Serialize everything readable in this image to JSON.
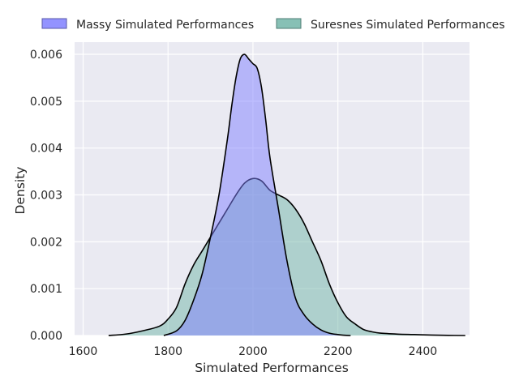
{
  "chart_data": {
    "type": "area",
    "title": "",
    "xlabel": "Simulated Performances",
    "ylabel": "Density",
    "xlim": [
      1580,
      2510
    ],
    "ylim": [
      0,
      0.00626
    ],
    "x_ticks": [
      1600,
      1800,
      2000,
      2200,
      2400
    ],
    "x_tick_labels": [
      "1600",
      "1800",
      "2000",
      "2200",
      "2400"
    ],
    "y_ticks": [
      0,
      0.001,
      0.002,
      0.003,
      0.004,
      0.005,
      0.006
    ],
    "y_tick_labels": [
      "0.000",
      "0.001",
      "0.002",
      "0.003",
      "0.004",
      "0.005",
      "0.006"
    ],
    "grid": true,
    "legend_placement": "top, outside plot",
    "series": [
      {
        "name": "Massy Simulated Performances",
        "color": "#8080ff",
        "x": [
          1790,
          1820,
          1840,
          1860,
          1880,
          1900,
          1920,
          1940,
          1950,
          1960,
          1970,
          1980,
          1990,
          2000,
          2010,
          2020,
          2030,
          2040,
          2060,
          2080,
          2100,
          2120,
          2140,
          2160,
          2180,
          2200,
          2210,
          2230
        ],
        "y": [
          0.0,
          0.0001,
          0.00032,
          0.00075,
          0.0013,
          0.0021,
          0.003,
          0.0042,
          0.0049,
          0.0055,
          0.0059,
          0.006,
          0.0059,
          0.0058,
          0.0057,
          0.0053,
          0.0046,
          0.0038,
          0.0027,
          0.0016,
          0.0008,
          0.00045,
          0.00025,
          0.00012,
          5e-05,
          2e-05,
          1e-05,
          0.0
        ]
      },
      {
        "name": "Suresnes Simulated Performances",
        "color": "#72b5a8",
        "x": [
          1660,
          1700,
          1740,
          1780,
          1800,
          1820,
          1840,
          1860,
          1880,
          1900,
          1920,
          1940,
          1960,
          1980,
          2000,
          2020,
          2040,
          2060,
          2080,
          2100,
          2120,
          2140,
          2160,
          2180,
          2200,
          2220,
          2240,
          2260,
          2280,
          2300,
          2340,
          2380,
          2420,
          2460,
          2500
        ],
        "y": [
          0.0,
          3e-05,
          0.0001,
          0.0002,
          0.00035,
          0.0006,
          0.0011,
          0.0015,
          0.0018,
          0.0021,
          0.0024,
          0.0027,
          0.003,
          0.00325,
          0.00335,
          0.0033,
          0.0031,
          0.003,
          0.0029,
          0.0027,
          0.0024,
          0.002,
          0.0016,
          0.0011,
          0.0007,
          0.0004,
          0.00025,
          0.00013,
          8e-05,
          5e-05,
          3e-05,
          2e-05,
          1e-05,
          4e-06,
          0.0
        ]
      }
    ]
  }
}
